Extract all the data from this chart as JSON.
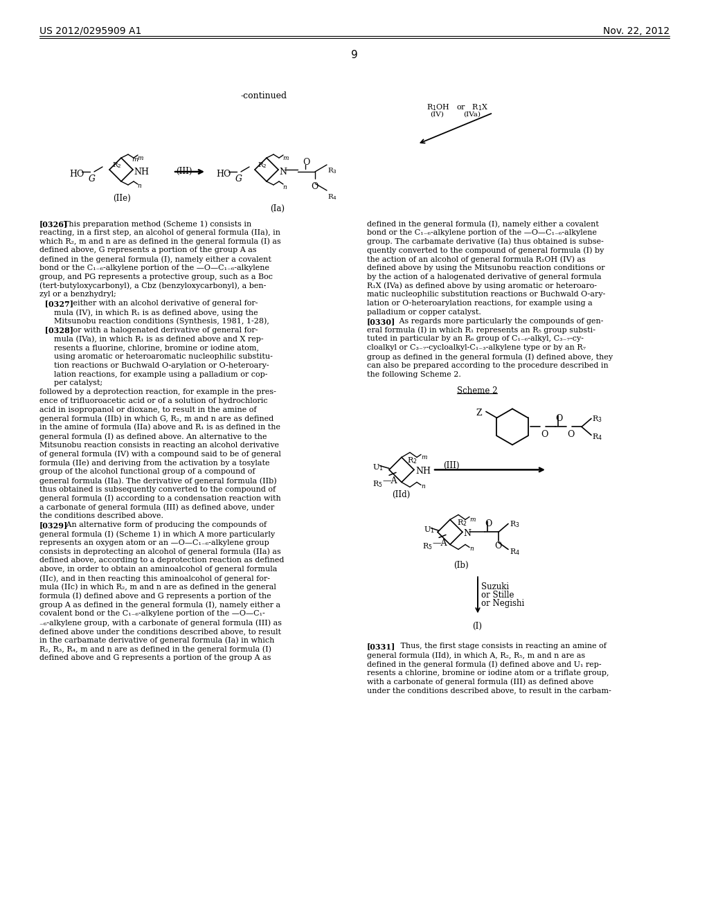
{
  "bg_color": "#ffffff",
  "header_left": "US 2012/0295909 A1",
  "header_right": "Nov. 22, 2012",
  "page_number": "9",
  "continued_label": "-continued"
}
